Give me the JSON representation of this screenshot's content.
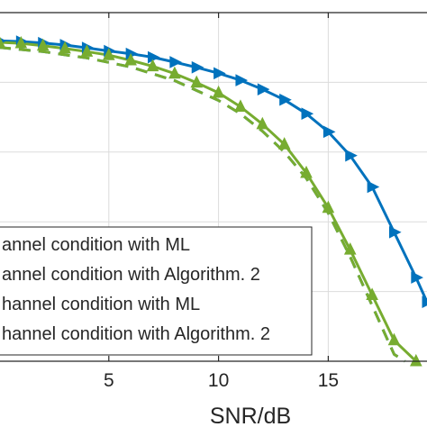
{
  "chart_data": {
    "type": "line",
    "xlabel": "SNR/dB",
    "ylabel": "",
    "xlim": [
      0,
      19.5
    ],
    "ylim": [
      0,
      1.0
    ],
    "x_ticks": [
      5,
      10,
      15
    ],
    "grid": true,
    "legend_position": "bottom-left",
    "series": [
      {
        "name": "annel condition with ML",
        "color": "#0072BD",
        "style": "solid",
        "marker": "triangle-right",
        "x": [
          0,
          1,
          2,
          3,
          4,
          5,
          6,
          7,
          8,
          9,
          10,
          11,
          12,
          13,
          14,
          15,
          16,
          17,
          18,
          19,
          19.5
        ],
        "y": [
          0.919,
          0.917,
          0.913,
          0.907,
          0.899,
          0.89,
          0.882,
          0.872,
          0.858,
          0.843,
          0.826,
          0.806,
          0.78,
          0.75,
          0.71,
          0.658,
          0.59,
          0.5,
          0.37,
          0.24,
          0.17
        ]
      },
      {
        "name": "annel condition with Algorithm. 2",
        "color": "#77AC30",
        "style": "solid",
        "marker": "triangle-up",
        "x": [
          0,
          1,
          2,
          3,
          4,
          5,
          6,
          7,
          8,
          9,
          10,
          11,
          12,
          13,
          14,
          15,
          16,
          17,
          18,
          19
        ],
        "y": [
          0.915,
          0.912,
          0.905,
          0.897,
          0.888,
          0.878,
          0.863,
          0.846,
          0.825,
          0.799,
          0.77,
          0.73,
          0.68,
          0.622,
          0.54,
          0.44,
          0.32,
          0.19,
          0.06,
          0.0
        ]
      },
      {
        "name": "hannel condition with ML",
        "color": "#0072BD",
        "style": "dashed",
        "marker": "none",
        "x": [
          0,
          2,
          4,
          6,
          8,
          10,
          11,
          12,
          13,
          14,
          15,
          16,
          17,
          18,
          18.5
        ],
        "y": [
          0.9,
          0.888,
          0.87,
          0.844,
          0.805,
          0.748,
          0.71,
          0.66,
          0.6,
          0.525,
          0.425,
          0.3,
          0.16,
          0.02,
          0.0
        ]
      },
      {
        "name": "hannel condition with Algorithm. 2",
        "color": "#77AC30",
        "style": "dashed",
        "marker": "none",
        "x": [
          0,
          2,
          4,
          6,
          8,
          10,
          11,
          12,
          13,
          14,
          15,
          16,
          17,
          18,
          18.5
        ],
        "y": [
          0.9,
          0.888,
          0.87,
          0.844,
          0.805,
          0.748,
          0.71,
          0.66,
          0.6,
          0.525,
          0.425,
          0.3,
          0.16,
          0.02,
          0.0
        ]
      }
    ]
  }
}
